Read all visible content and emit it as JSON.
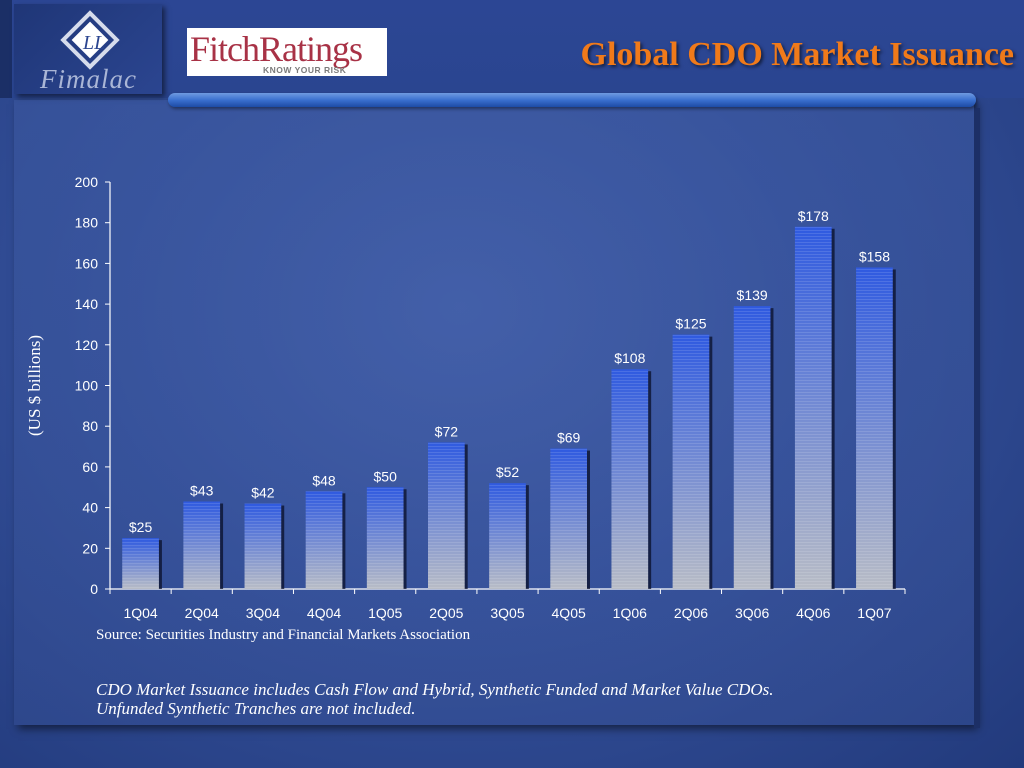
{
  "header": {
    "title": "Global CDO Market Issuance",
    "fimalac_logo_text": "Fimalac",
    "fitch_logo_text": "FitchRatings",
    "fitch_tagline": "KNOW YOUR RISK",
    "title_color": "#f07a1a"
  },
  "chart_data": {
    "type": "bar",
    "title": "Global CDO Market Issuance",
    "xlabel": "",
    "ylabel": "(US $ billions)",
    "ylim": [
      0,
      200
    ],
    "yticks": [
      0,
      20,
      40,
      60,
      80,
      100,
      120,
      140,
      160,
      180,
      200
    ],
    "grid": false,
    "categories": [
      "1Q04",
      "2Q04",
      "3Q04",
      "4Q04",
      "1Q05",
      "2Q05",
      "3Q05",
      "4Q05",
      "1Q06",
      "2Q06",
      "3Q06",
      "4Q06",
      "1Q07"
    ],
    "values": [
      25,
      43,
      42,
      48,
      50,
      72,
      52,
      69,
      108,
      125,
      139,
      178,
      158
    ],
    "data_labels": [
      "$25",
      "$43",
      "$42",
      "$48",
      "$50",
      "$72",
      "$52",
      "$69",
      "$108",
      "$125",
      "$139",
      "$178",
      "$158"
    ],
    "bar_color_top": "#2f5ae0",
    "bar_color_bottom": "#b8bcc6"
  },
  "footer": {
    "source": "Source: Securities Industry and Financial Markets Association",
    "note_line1": "CDO Market Issuance includes Cash Flow and Hybrid, Synthetic Funded and Market Value CDOs.",
    "note_line2": "Unfunded Synthetic Tranches are not included."
  }
}
